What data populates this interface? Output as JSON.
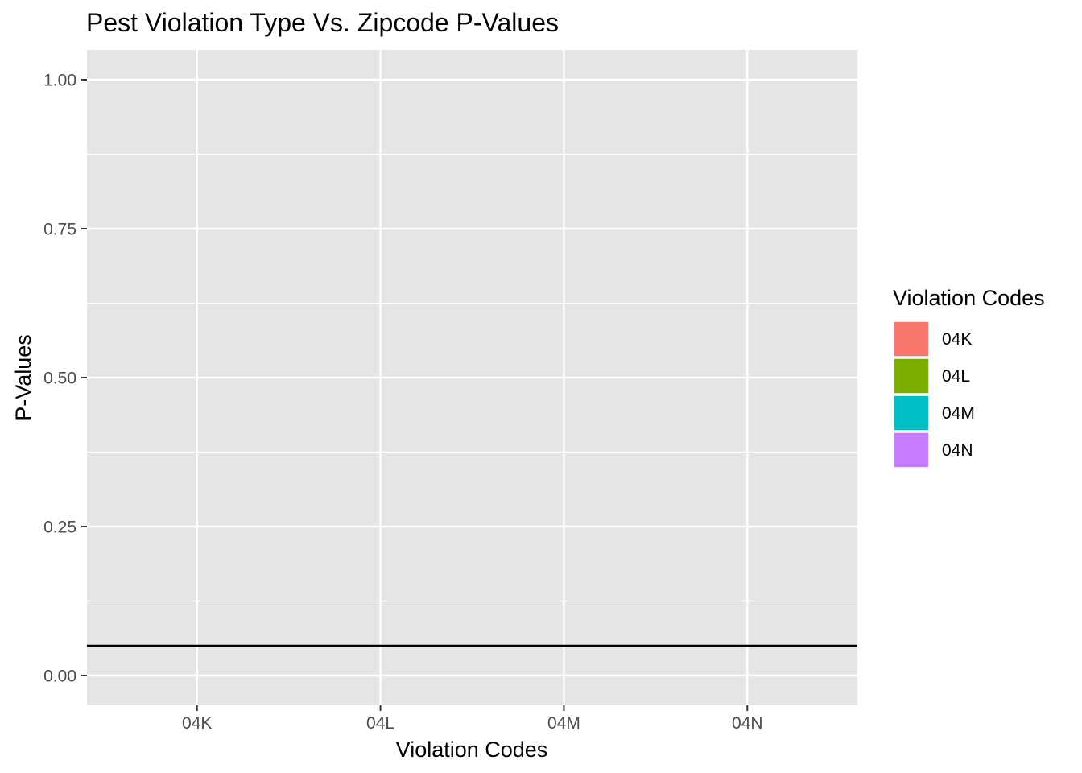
{
  "chart_data": {
    "type": "bar",
    "title": "Pest Violation Type Vs. Zipcode P-Values",
    "xlabel": "Violation Codes",
    "ylabel": "P-Values",
    "categories": [
      "04K",
      "04L",
      "04M",
      "04N"
    ],
    "values": [
      0,
      0,
      0,
      0
    ],
    "ylim": [
      -0.05,
      1.05
    ],
    "yticks": [
      "0.00",
      "0.25",
      "0.50",
      "0.75",
      "1.00"
    ],
    "reference_line": {
      "y": 0.05,
      "color": "#000000"
    },
    "grid": true,
    "panel_background": "#e5e5e5",
    "legend": {
      "title": "Violation Codes",
      "position": "right",
      "items": [
        {
          "label": "04K",
          "color": "#F8766D"
        },
        {
          "label": "04L",
          "color": "#7CAE00"
        },
        {
          "label": "04M",
          "color": "#00BFC4"
        },
        {
          "label": "04N",
          "color": "#C77CFF"
        }
      ]
    }
  }
}
